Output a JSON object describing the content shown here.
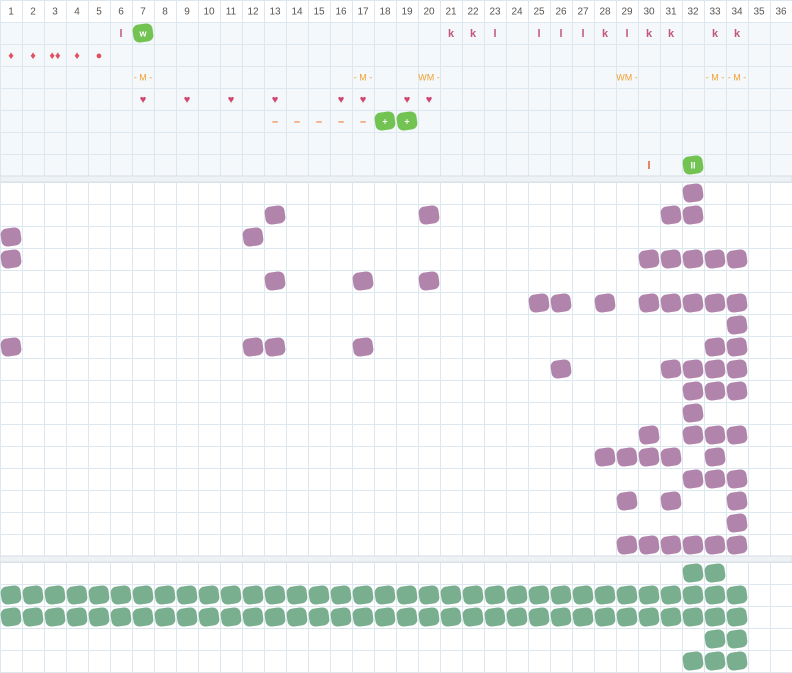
{
  "header": {
    "columns": [
      1,
      2,
      3,
      4,
      5,
      6,
      7,
      8,
      9,
      10,
      11,
      12,
      13,
      14,
      15,
      16,
      17,
      18,
      19,
      20,
      21,
      22,
      23,
      24,
      25,
      26,
      27,
      28,
      29,
      30,
      31,
      32,
      33,
      34,
      35,
      36
    ]
  },
  "top": {
    "rows": [
      [
        null,
        null,
        null,
        null,
        null,
        "l",
        {
          "badge": "w"
        },
        null,
        null,
        null,
        null,
        null,
        null,
        null,
        null,
        null,
        null,
        null,
        null,
        null,
        "k",
        "k",
        "l",
        null,
        "l",
        "l",
        "l",
        "k",
        "l",
        "k",
        "k",
        null,
        "k",
        "k",
        null,
        null
      ],
      [
        "♦",
        "♦",
        "♦♦",
        "♦",
        "●",
        null,
        null,
        null,
        null,
        null,
        null,
        null,
        null,
        null,
        null,
        null,
        null,
        null,
        null,
        null,
        null,
        null,
        null,
        null,
        null,
        null,
        null,
        null,
        null,
        null,
        null,
        null,
        null,
        null,
        null,
        null
      ],
      [
        null,
        null,
        null,
        null,
        null,
        null,
        "- M -",
        null,
        null,
        null,
        null,
        null,
        null,
        null,
        null,
        null,
        "- M -",
        null,
        null,
        "WM -",
        null,
        null,
        null,
        null,
        null,
        null,
        null,
        null,
        "WM -",
        null,
        null,
        null,
        "- M -",
        "- M -",
        null,
        null
      ],
      [
        null,
        null,
        null,
        null,
        null,
        null,
        "♥",
        null,
        "♥",
        null,
        "♥",
        null,
        "♥",
        null,
        null,
        "♥",
        "♥",
        null,
        "♥",
        "♥",
        null,
        null,
        null,
        null,
        null,
        null,
        null,
        null,
        null,
        null,
        null,
        null,
        null,
        null,
        null,
        null
      ],
      [
        null,
        null,
        null,
        null,
        null,
        null,
        null,
        null,
        null,
        null,
        null,
        null,
        "–",
        "–",
        "–",
        "–",
        "–",
        {
          "badge": "+"
        },
        {
          "badge": "+"
        },
        null,
        null,
        null,
        null,
        null,
        null,
        null,
        null,
        null,
        null,
        null,
        null,
        null,
        null,
        null,
        null,
        null
      ],
      [
        null,
        null,
        null,
        null,
        null,
        null,
        null,
        null,
        null,
        null,
        null,
        null,
        null,
        null,
        null,
        null,
        null,
        null,
        null,
        null,
        null,
        null,
        null,
        null,
        null,
        null,
        null,
        null,
        null,
        null,
        null,
        null,
        null,
        null,
        null,
        null
      ],
      [
        null,
        null,
        null,
        null,
        null,
        null,
        null,
        null,
        null,
        null,
        null,
        null,
        null,
        null,
        null,
        null,
        null,
        null,
        null,
        null,
        null,
        null,
        null,
        null,
        null,
        null,
        null,
        null,
        null,
        "l",
        null,
        {
          "badge": "II"
        },
        null,
        null,
        null,
        null
      ]
    ]
  },
  "middle": {
    "rows": [
      [
        32
      ],
      [
        13,
        20,
        31,
        32
      ],
      [
        1,
        12
      ],
      [
        1,
        30,
        31,
        32,
        33,
        34
      ],
      [
        13,
        17,
        20
      ],
      [
        25,
        26,
        28,
        30,
        31,
        32,
        33,
        34
      ],
      [
        34
      ],
      [
        1,
        12,
        13,
        17,
        33,
        34
      ],
      [
        26,
        31,
        32,
        33,
        34
      ],
      [
        32,
        33,
        34
      ],
      [
        32
      ],
      [
        30,
        32,
        33,
        34
      ],
      [
        28,
        29,
        30,
        31,
        33
      ],
      [
        32,
        33,
        34
      ],
      [
        29,
        31,
        34
      ],
      [
        34
      ],
      [
        29,
        30,
        31,
        32,
        33,
        34
      ]
    ]
  },
  "bottom": {
    "rows": [
      [
        32,
        33
      ],
      [
        1,
        2,
        3,
        4,
        5,
        6,
        7,
        8,
        9,
        10,
        11,
        12,
        13,
        14,
        15,
        16,
        17,
        18,
        19,
        20,
        21,
        22,
        23,
        24,
        25,
        26,
        27,
        28,
        29,
        30,
        31,
        32,
        33,
        34
      ],
      [
        1,
        2,
        3,
        4,
        5,
        6,
        7,
        8,
        9,
        10,
        11,
        12,
        13,
        14,
        15,
        16,
        17,
        18,
        19,
        20,
        21,
        22,
        23,
        24,
        25,
        26,
        27,
        28,
        29,
        30,
        31,
        32,
        33,
        34
      ],
      [
        33,
        34
      ],
      [
        32,
        33,
        34
      ]
    ]
  }
}
